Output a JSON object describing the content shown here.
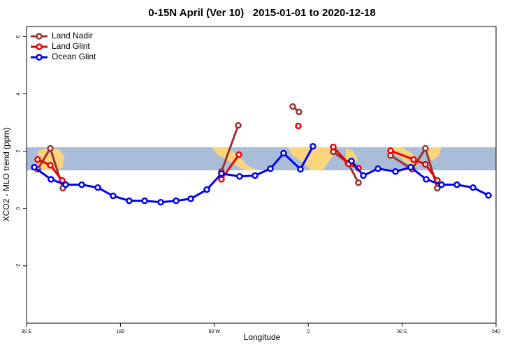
{
  "chart_data": {
    "type": "line",
    "title": "0-15N April (Ver 10)   2015-01-01 to 2020-12-18",
    "xlabel": "Longitude",
    "ylabel": "XCO2 - MLO trend (ppm)",
    "xlim": [
      90,
      540
    ],
    "xticks": [
      {
        "value": 90,
        "label": "90 E"
      },
      180,
      {
        "value": 270,
        "label": "90 W"
      },
      {
        "value": 360,
        "label": "0"
      },
      {
        "value": 450,
        "label": "90 E"
      },
      540
    ],
    "ylim": [
      -4,
      6.35
    ],
    "yticks": [
      -2,
      0,
      2,
      4,
      6
    ],
    "legend": "top-left",
    "series": [
      {
        "name": "Land Nadir",
        "color": "#993333",
        "x": [
          100.7,
          112.8,
          124.8,
          200,
          276.8,
          292.9,
          320,
          345.1,
          351.1,
          370,
          384,
          398,
          408.1,
          420,
          438.9,
          459.6,
          472.3,
          483.7
        ],
        "values": [
          1.37,
          2.1,
          0.71,
          null,
          1.29,
          2.9,
          null,
          3.56,
          3.37,
          null,
          1.98,
          1.59,
          0.9,
          null,
          1.85,
          1.37,
          2.1,
          0.71
        ]
      },
      {
        "name": "Land Glint",
        "color": "#ee0000",
        "x": [
          100.7,
          112.8,
          124.2,
          200,
          276.8,
          293.6,
          320,
          350.5,
          370,
          384,
          398.7,
          408.1,
          420,
          438.9,
          461,
          472.3,
          483.7
        ],
        "values": [
          1.71,
          1.51,
          0.98,
          null,
          1.02,
          1.88,
          null,
          2.88,
          null,
          2.15,
          1.56,
          1.41,
          null,
          2.02,
          1.71,
          1.54,
          0.98
        ]
      },
      {
        "name": "Ocean Glint",
        "color": "#0000ee",
        "x": [
          97.4,
          113.4,
          127.5,
          142.9,
          158.3,
          173,
          188.4,
          203.2,
          218.6,
          233.3,
          247.4,
          262.8,
          276.8,
          294.2,
          309,
          323.7,
          336.4,
          352.5,
          364.5,
          382.5,
          401.4,
          412.8,
          426.8,
          443.6,
          458.3,
          473,
          487.8,
          502.5,
          518,
          532.7
        ],
        "values": [
          1.44,
          1.02,
          0.83,
          0.83,
          0.73,
          0.44,
          0.27,
          0.27,
          0.22,
          0.27,
          0.34,
          0.66,
          1.22,
          1.12,
          1.15,
          1.39,
          1.93,
          1.37,
          2.17,
          null,
          1.66,
          1.15,
          1.39,
          1.29,
          1.44,
          1.02,
          0.83,
          0.83,
          0.73,
          0.46
        ]
      }
    ]
  }
}
